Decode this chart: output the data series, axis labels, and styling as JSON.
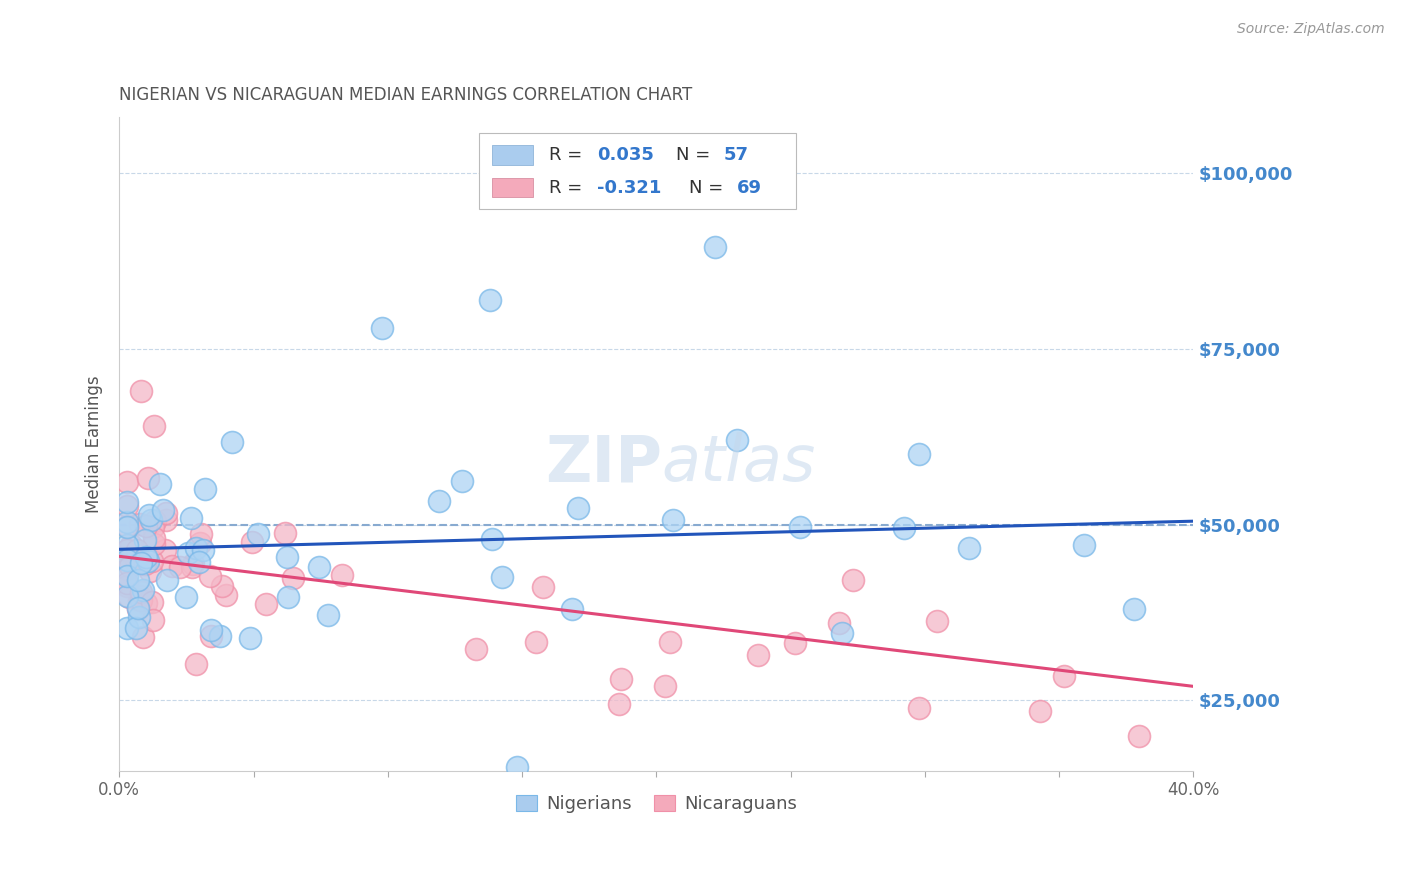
{
  "title": "NIGERIAN VS NICARAGUAN MEDIAN EARNINGS CORRELATION CHART",
  "source": "Source: ZipAtlas.com",
  "ylabel": "Median Earnings",
  "watermark": "ZIPatlas",
  "xmin": 0.0,
  "xmax": 0.4,
  "ymin": 15000,
  "ymax": 108000,
  "yticks": [
    25000,
    50000,
    75000,
    100000
  ],
  "ytick_labels": [
    "$25,000",
    "$50,000",
    "$75,000",
    "$100,000"
  ],
  "xticks": [
    0.0,
    0.05,
    0.1,
    0.15,
    0.2,
    0.25,
    0.3,
    0.35,
    0.4
  ],
  "nigerians_color": "#7ab8e8",
  "nicaraguans_color": "#f090a8",
  "nigerians_fill": "#aed4f4",
  "nicaraguans_fill": "#f4b8c8",
  "blue_line_color": "#2255bb",
  "pink_line_color": "#e04878",
  "dashed_line_color": "#88aad0",
  "grid_color": "#c8d8e8",
  "bg_color": "#ffffff",
  "title_color": "#555555",
  "right_axis_color": "#4488cc",
  "legend_blue_color": "#aaccee",
  "legend_pink_color": "#f4aabb",
  "blue_line_y0": 46500,
  "blue_line_y1": 50500,
  "pink_line_y0": 45500,
  "pink_line_y1": 27000
}
